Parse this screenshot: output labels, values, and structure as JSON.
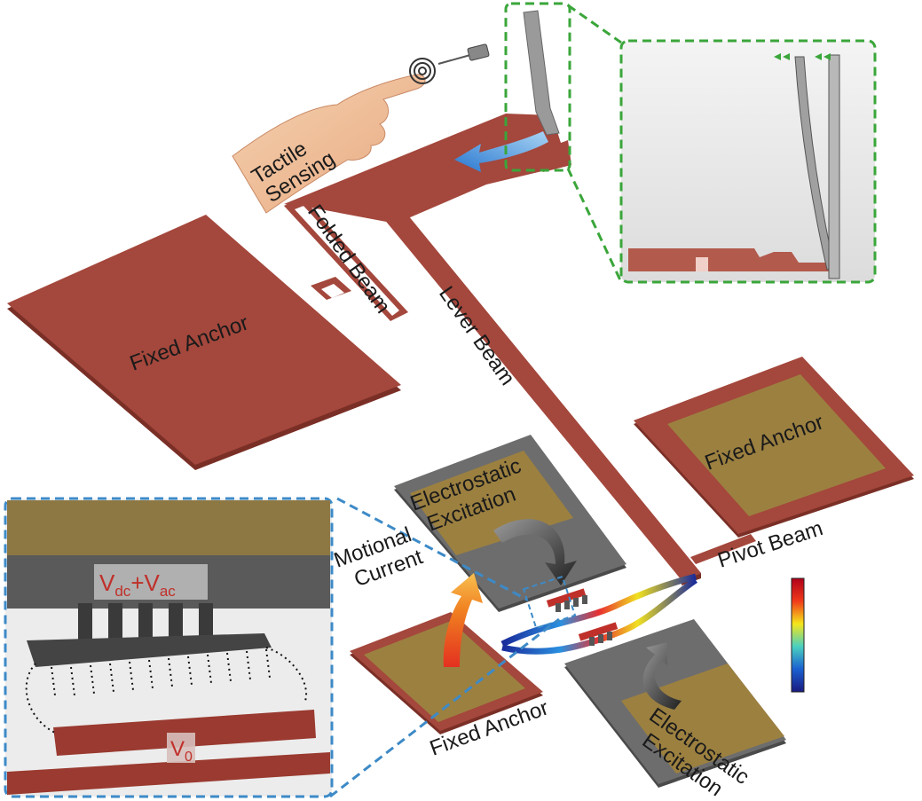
{
  "labels": {
    "tactile_1": "Tactile",
    "tactile_2": "Sensing",
    "folded_beam": "Folded Beam",
    "lever_beam": "Lever Beam",
    "fixed_anchor_left": "Fixed Anchor",
    "fixed_anchor_right": "Fixed Anchor",
    "fixed_anchor_bottom": "Fixed Anchor",
    "electrostatic_top_1": "Electrostatic",
    "electrostatic_top_2": "Excitation",
    "electrostatic_bottom_1": "Electrostatic",
    "electrostatic_bottom_2": "Excitation",
    "motional_1": "Motional",
    "motional_2": "Current",
    "pivot_beam": "Pivot Beam",
    "vdc": "V",
    "vdc_sub": "dc",
    "vdc_plus": "+V",
    "vac_sub": "ac",
    "v0": "V",
    "v0_sub": "0"
  },
  "colors": {
    "substrate_red": "#a4473c",
    "substrate_side": "#7a2f26",
    "electrode_gold": "#9c8040",
    "electrode_grey": "#6d6d6d",
    "inset_green": "#3aa63a",
    "inset_blue": "#3d8ac7"
  },
  "icons": [
    "hand-icon",
    "probe-icon",
    "touch-ripple-icon",
    "curved-arrow-icon"
  ]
}
